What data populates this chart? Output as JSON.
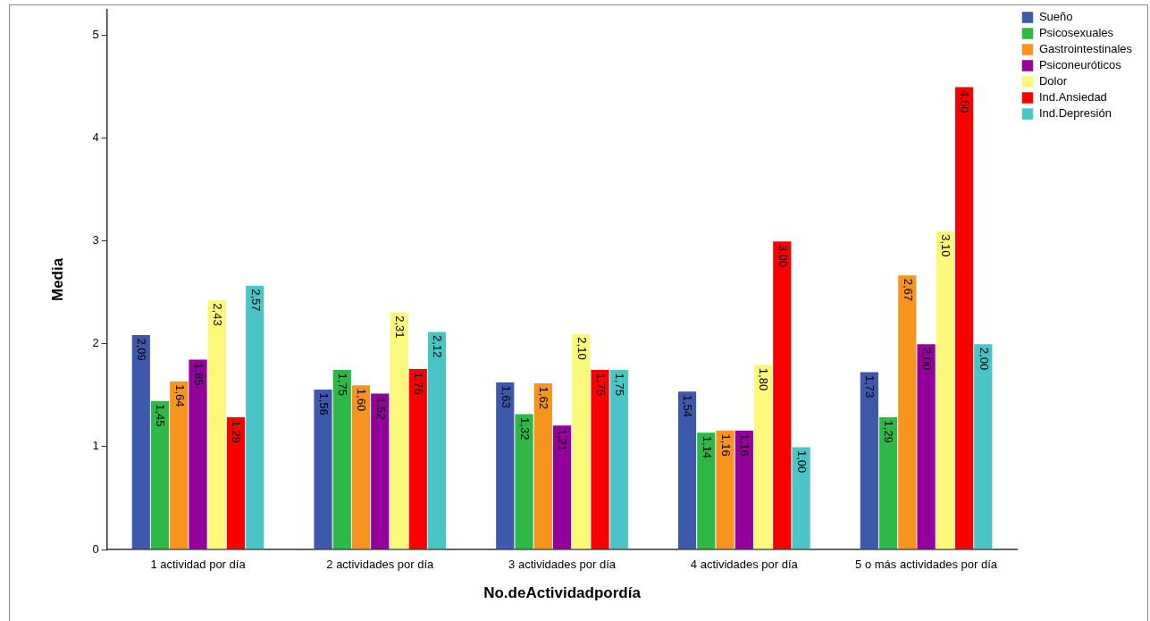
{
  "chart_data": {
    "type": "bar",
    "xlabel": "No.deActividadpordía",
    "ylabel": "Media",
    "categories": [
      "1 actividad por día",
      "2 actividades por día",
      "3 actividades por día",
      "4 actividades por día",
      "5 o más actividades por día"
    ],
    "series": [
      {
        "name": "Sueño",
        "color": "#3e58ac",
        "values": [
          2.09,
          1.56,
          1.63,
          1.54,
          1.73
        ],
        "value_labels": [
          "2,09",
          "1,56",
          "1,63",
          "1,54",
          "1,73"
        ]
      },
      {
        "name": "Psicosexuales",
        "color": "#2eb848",
        "values": [
          1.45,
          1.75,
          1.32,
          1.14,
          1.29
        ],
        "value_labels": [
          "1,45",
          "1,75",
          "1,32",
          "1,14",
          "1,29"
        ]
      },
      {
        "name": "Gastrointestinales",
        "color": "#f7941d",
        "values": [
          1.64,
          1.6,
          1.62,
          1.16,
          2.67
        ],
        "value_labels": [
          "1,64",
          "1,60",
          "1,62",
          "1,16",
          "2,67"
        ]
      },
      {
        "name": "Psiconeuróticos",
        "color": "#93009a",
        "values": [
          1.85,
          1.52,
          1.21,
          1.16,
          2.0
        ],
        "value_labels": [
          "1,85",
          "1,52",
          "1,21",
          "1,16",
          "2,00"
        ]
      },
      {
        "name": "Dolor",
        "color": "#fbf87c",
        "values": [
          2.43,
          2.31,
          2.1,
          1.8,
          3.1
        ],
        "value_labels": [
          "2,43",
          "2,31",
          "2,10",
          "1,80",
          "3,10"
        ]
      },
      {
        "name": "Ind.Ansiedad",
        "color": "#fb0000",
        "values": [
          1.29,
          1.76,
          1.75,
          3.0,
          4.5
        ],
        "value_labels": [
          "1,29",
          "1,76",
          "1,75",
          "3,00",
          "4,50"
        ]
      },
      {
        "name": "Ind.Depresión",
        "color": "#4ac4c6",
        "values": [
          2.57,
          2.12,
          1.75,
          1.0,
          2.0
        ],
        "value_labels": [
          "2,57",
          "2,12",
          "1,75",
          "1,00",
          "2,00"
        ]
      }
    ],
    "ylim": [
      0,
      5.25
    ],
    "yticks": [
      0,
      1,
      2,
      3,
      4,
      5
    ],
    "grid": false,
    "legend": "top right"
  }
}
